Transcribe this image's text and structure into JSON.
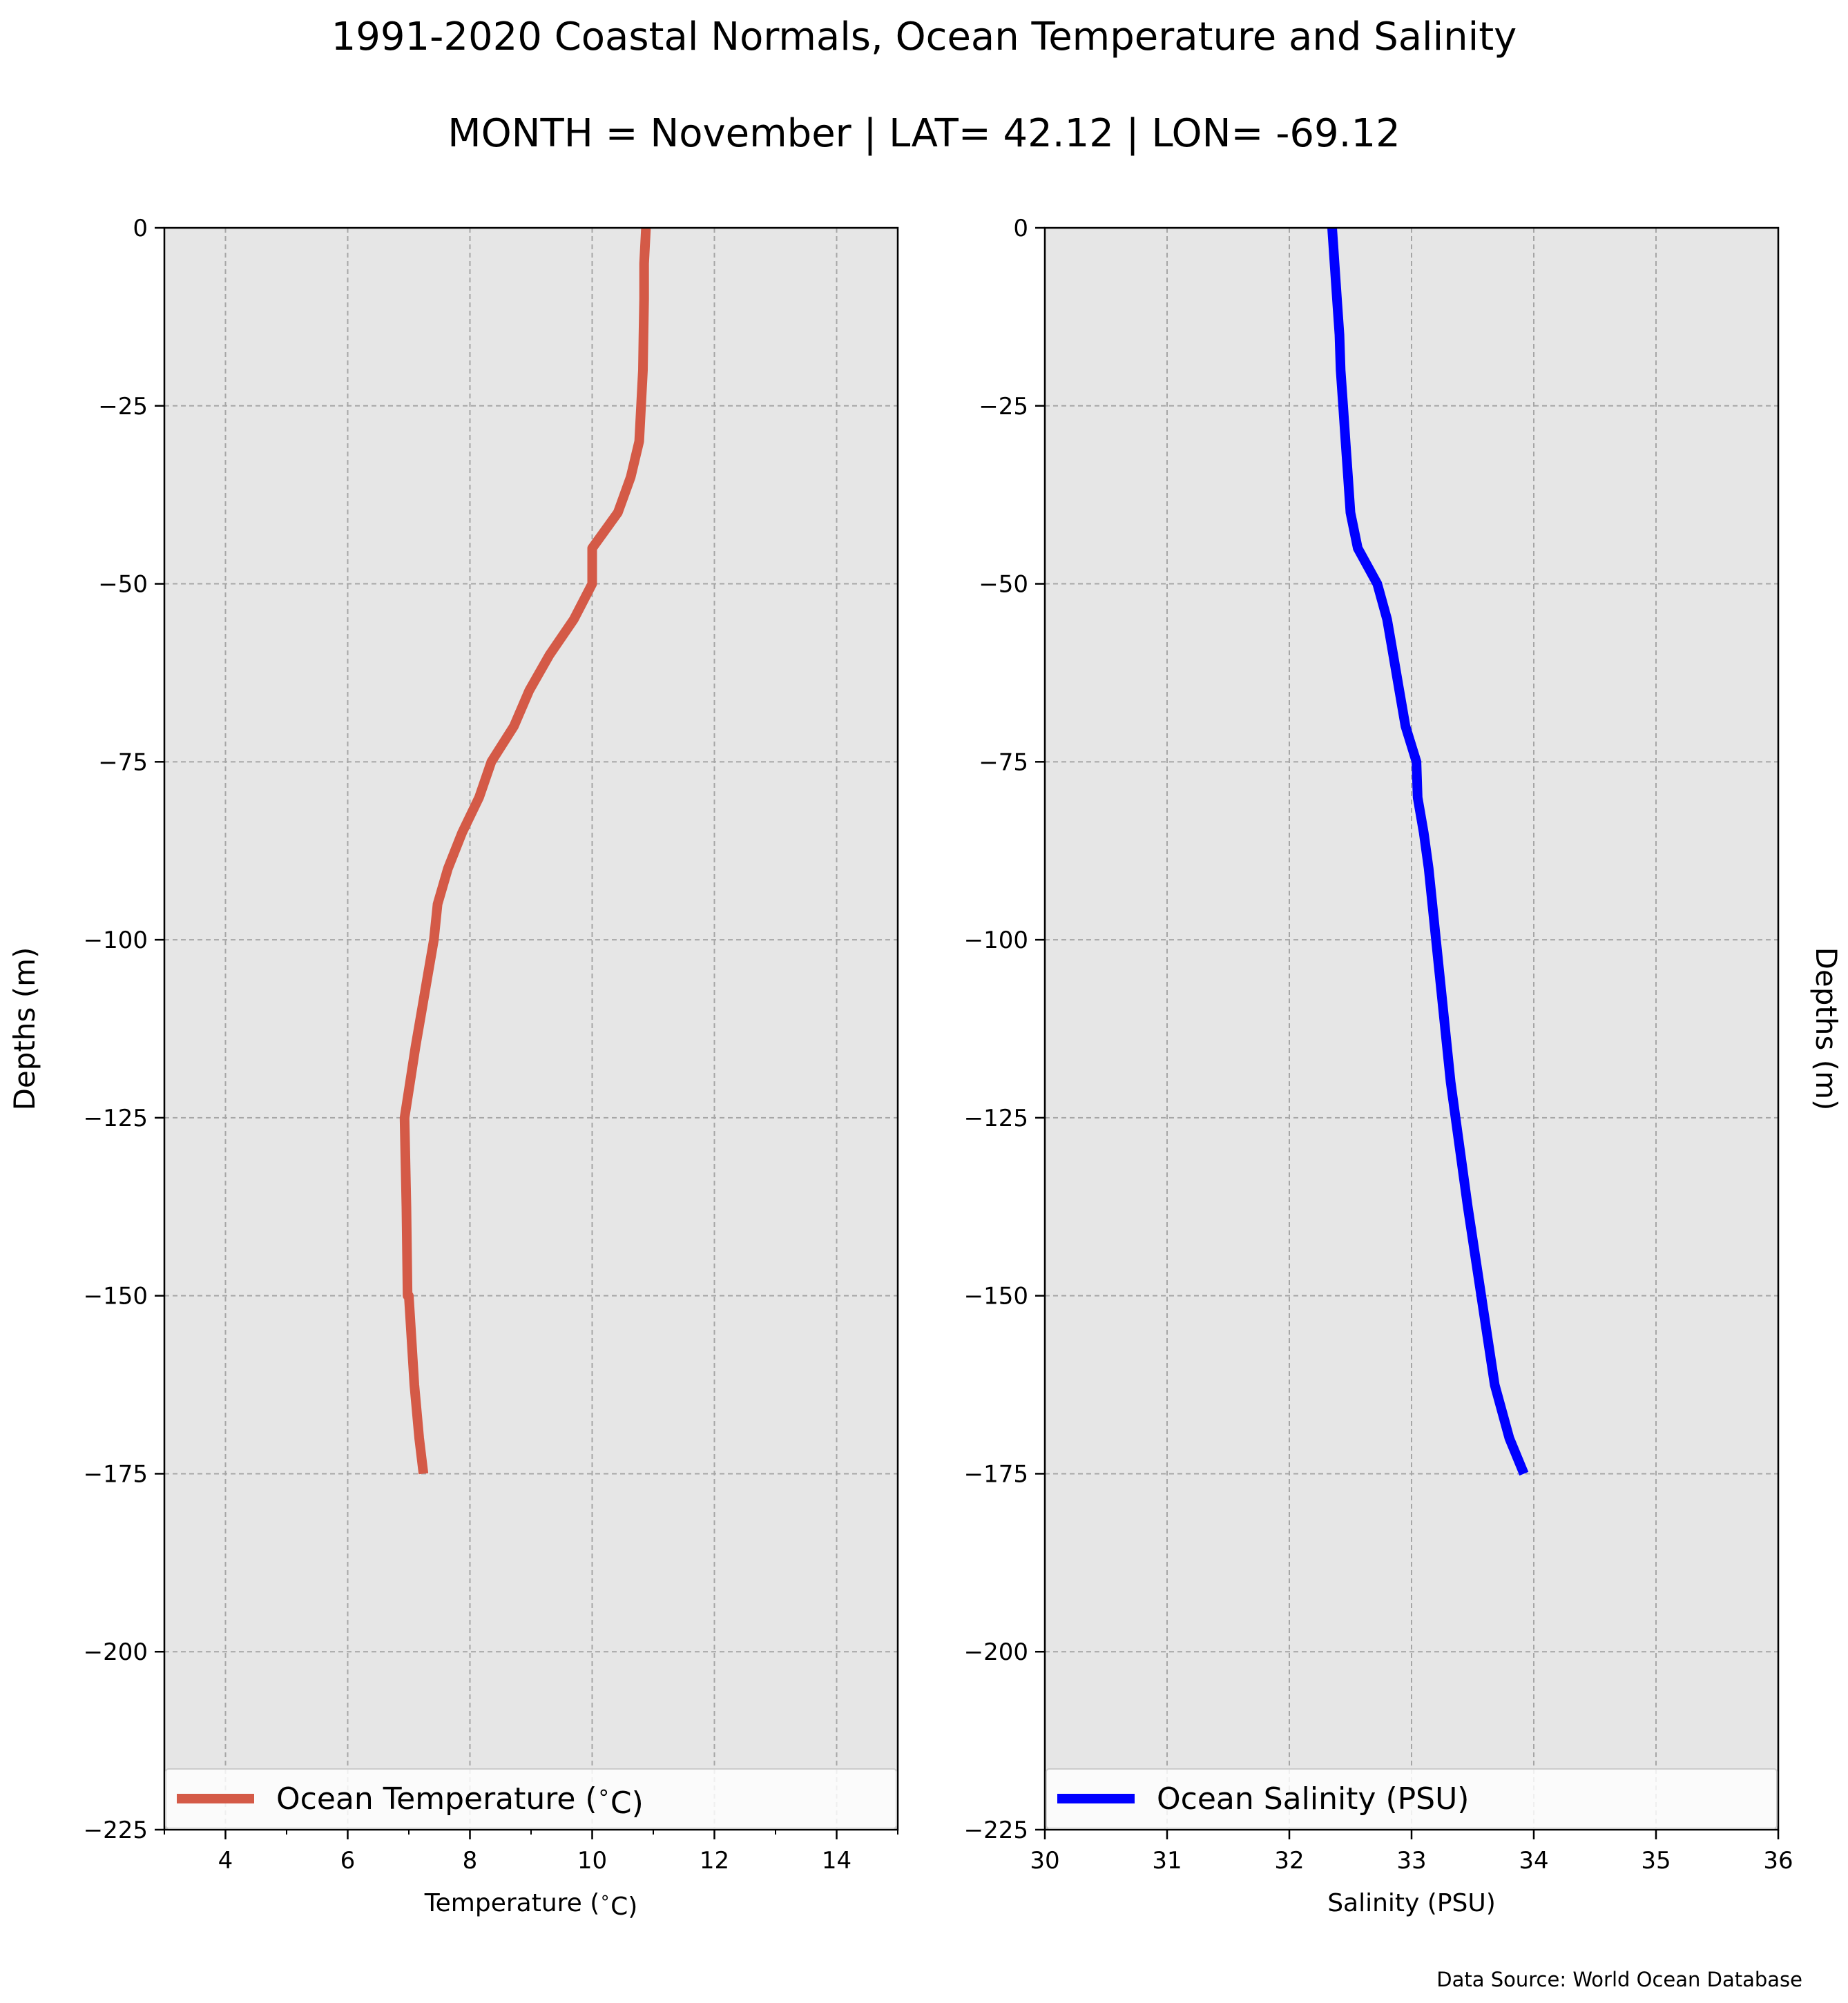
{
  "figure": {
    "title": "1991-2020 Coastal Normals, Ocean Temperature and Salinity",
    "subtitle": "MONTH = November | LAT= 42.12 | LON= -69.12",
    "source_note": "Data Source: World Ocean Database"
  },
  "chart_data": [
    {
      "type": "line",
      "xlabel": "Temperature ($^\\circ$C)",
      "ylabel": "Depths (m)",
      "xlim": [
        3,
        15
      ],
      "ylim": [
        -225,
        0
      ],
      "xticks": [
        4,
        6,
        8,
        10,
        12,
        14
      ],
      "xticks_minor": [
        3,
        5,
        7,
        9,
        11,
        13,
        15
      ],
      "yticks": [
        0,
        -25,
        -50,
        -75,
        -100,
        -125,
        -150,
        -175,
        -200,
        -225
      ],
      "grid": true,
      "background": "#e6e6e6",
      "legend_position": "bottom",
      "series": [
        {
          "name": "Ocean Temperature ($^\\circ$C)",
          "color": "#d45a47",
          "x": [
            10.88,
            10.85,
            10.85,
            10.84,
            10.83,
            10.8,
            10.77,
            10.63,
            10.42,
            10.0,
            10.0,
            9.7,
            9.3,
            8.97,
            8.72,
            8.35,
            8.15,
            7.87,
            7.64,
            7.47,
            7.41,
            7.31,
            7.21,
            7.11,
            7.02,
            6.93,
            6.96,
            6.98,
            7.0,
            7.09,
            7.17,
            7.24
          ],
          "y": [
            0,
            -5,
            -10,
            -15,
            -20,
            -25,
            -30,
            -35,
            -40,
            -45,
            -50,
            -55,
            -60,
            -65,
            -70,
            -75,
            -80,
            -85,
            -90,
            -95,
            -100,
            -105,
            -110,
            -115,
            -120,
            -125,
            -137.5,
            -150,
            -150,
            -162.5,
            -170,
            -175
          ]
        }
      ]
    },
    {
      "type": "line",
      "xlabel": "Salinity (PSU)",
      "ylabel": "Depths (m)",
      "xlim": [
        30,
        36
      ],
      "ylim": [
        -225,
        0
      ],
      "xticks": [
        30,
        31,
        32,
        33,
        34,
        35,
        36
      ],
      "yticks": [
        0,
        -25,
        -50,
        -75,
        -100,
        -125,
        -150,
        -175,
        -200,
        -225
      ],
      "grid": true,
      "background": "#e6e6e6",
      "legend_position": "bottom",
      "series": [
        {
          "name": "Ocean Salinity (PSU)",
          "color": "#0000ff",
          "x": [
            32.35,
            32.37,
            32.39,
            32.41,
            32.42,
            32.44,
            32.46,
            32.48,
            32.5,
            32.56,
            32.72,
            32.8,
            32.85,
            32.9,
            32.95,
            33.04,
            33.05,
            33.1,
            33.14,
            33.17,
            33.2,
            33.23,
            33.26,
            33.29,
            33.32,
            33.36,
            33.46,
            33.57,
            33.68,
            33.8,
            33.92
          ],
          "y": [
            0,
            -5,
            -10,
            -15,
            -20,
            -25,
            -30,
            -35,
            -40,
            -45,
            -50,
            -55,
            -60,
            -65,
            -70,
            -75,
            -80,
            -85,
            -90,
            -95,
            -100,
            -105,
            -110,
            -115,
            -120,
            -125,
            -137.5,
            -150,
            -162.5,
            -170,
            -175
          ]
        }
      ]
    }
  ]
}
